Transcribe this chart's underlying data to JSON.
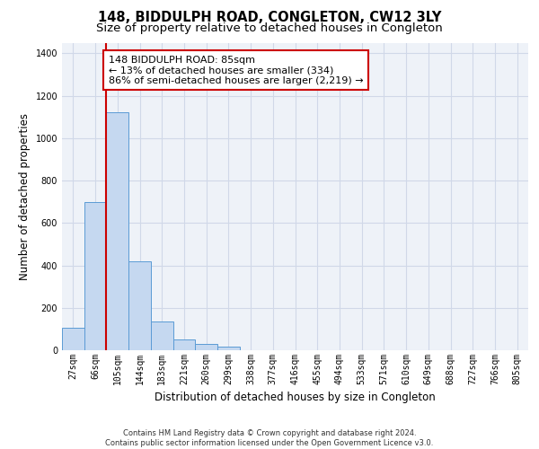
{
  "title_line1": "148, BIDDULPH ROAD, CONGLETON, CW12 3LY",
  "title_line2": "Size of property relative to detached houses in Congleton",
  "xlabel": "Distribution of detached houses by size in Congleton",
  "ylabel": "Number of detached properties",
  "categories": [
    "27sqm",
    "66sqm",
    "105sqm",
    "144sqm",
    "183sqm",
    "221sqm",
    "260sqm",
    "299sqm",
    "338sqm",
    "377sqm",
    "416sqm",
    "455sqm",
    "494sqm",
    "533sqm",
    "571sqm",
    "610sqm",
    "649sqm",
    "688sqm",
    "727sqm",
    "766sqm",
    "805sqm"
  ],
  "values": [
    105,
    700,
    1120,
    420,
    135,
    50,
    30,
    18,
    0,
    0,
    0,
    0,
    0,
    0,
    0,
    0,
    0,
    0,
    0,
    0,
    0
  ],
  "bar_color": "#c5d8f0",
  "bar_edge_color": "#5b9bd5",
  "grid_color": "#d0d8e8",
  "background_color": "#eef2f8",
  "vline_x": 1.5,
  "vline_color": "#cc0000",
  "annotation_text": "148 BIDDULPH ROAD: 85sqm\n← 13% of detached houses are smaller (334)\n86% of semi-detached houses are larger (2,219) →",
  "annotation_box_color": "white",
  "annotation_box_edge_color": "#cc0000",
  "ylim": [
    0,
    1450
  ],
  "yticks": [
    0,
    200,
    400,
    600,
    800,
    1000,
    1200,
    1400
  ],
  "footer_text": "Contains HM Land Registry data © Crown copyright and database right 2024.\nContains public sector information licensed under the Open Government Licence v3.0.",
  "title_fontsize": 10.5,
  "subtitle_fontsize": 9.5,
  "axis_label_fontsize": 8.5,
  "tick_fontsize": 7,
  "annotation_fontsize": 8,
  "footer_fontsize": 6
}
